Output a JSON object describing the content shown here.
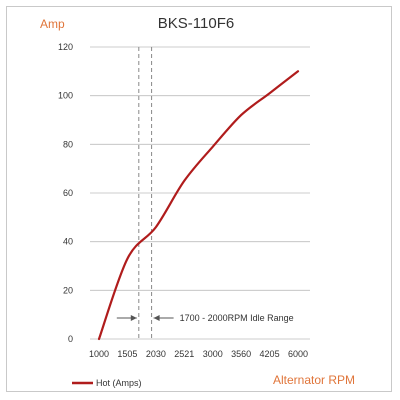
{
  "chart_data": {
    "type": "line",
    "title": "BKS-110F6",
    "ylabel": "Amp",
    "xlabel": "Alternator RPM",
    "x_categories": [
      "1000",
      "1505",
      "2030",
      "2521",
      "3000",
      "3560",
      "4205",
      "6000"
    ],
    "ylim": [
      0,
      120
    ],
    "y_ticks": [
      0,
      20,
      40,
      60,
      80,
      100,
      120
    ],
    "grid": true,
    "legend_placement": "bottom-left",
    "series": [
      {
        "name": "Hot (Amps)",
        "color": "#b01c1c",
        "x_index": [
          0,
          1,
          2,
          3,
          4,
          5,
          6,
          7
        ],
        "values": [
          0,
          33,
          46,
          65,
          79,
          92,
          101,
          110
        ]
      }
    ],
    "idle_range": {
      "label": "1700 - 2000RPM Idle Range",
      "x_index_start": 1.4,
      "x_index_end": 1.85
    }
  },
  "colors": {
    "axis_label": "#e0753a",
    "series": "#b01c1c",
    "grid": "#bdbdbd",
    "idle_lines": "#888888"
  }
}
